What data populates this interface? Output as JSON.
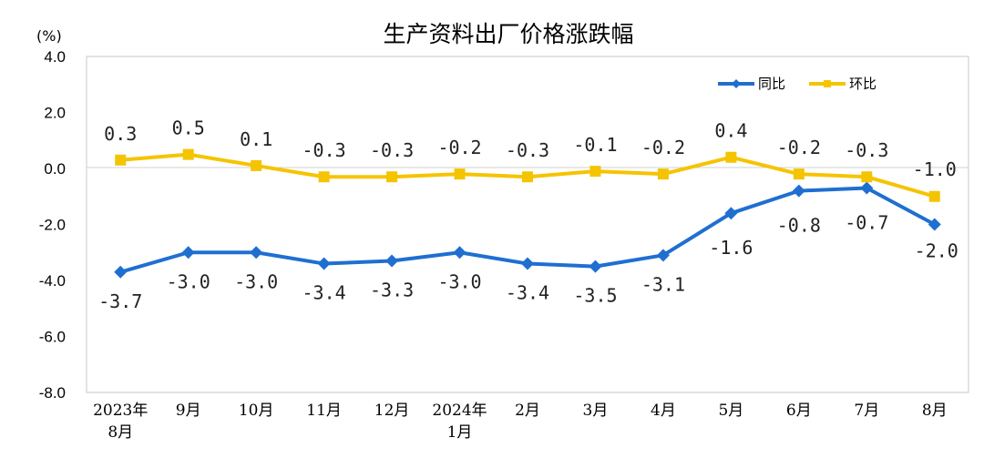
{
  "chart_data": {
    "type": "line",
    "title": "生产资料出厂价格涨跌幅",
    "unit_label": "(%)",
    "categories": [
      "2023年\n8月",
      "9月",
      "10月",
      "11月",
      "12月",
      "2024年\n1月",
      "2月",
      "3月",
      "4月",
      "5月",
      "6月",
      "7月",
      "8月"
    ],
    "series": [
      {
        "name": "同比",
        "color": "#1f6fd1",
        "marker": "diamond",
        "values": [
          -3.7,
          -3.0,
          -3.0,
          -3.4,
          -3.3,
          -3.0,
          -3.4,
          -3.5,
          -3.1,
          -1.6,
          -0.8,
          -0.7,
          -2.0
        ],
        "labels": [
          "-3.7",
          "-3.0",
          "-3.0",
          "-3.4",
          "-3.3",
          "-3.0",
          "-3.4",
          "-3.5",
          "-3.1",
          "-1.6",
          "-0.8",
          "-0.7",
          "-2.0"
        ]
      },
      {
        "name": "环比",
        "color": "#f5c400",
        "marker": "square",
        "values": [
          0.3,
          0.5,
          0.1,
          -0.3,
          -0.3,
          -0.2,
          -0.3,
          -0.1,
          -0.2,
          0.4,
          -0.2,
          -0.3,
          -1.0
        ],
        "labels": [
          "0.3",
          "0.5",
          "0.1",
          "-0.3",
          "-0.3",
          "-0.2",
          "-0.3",
          "-0.1",
          "-0.2",
          "0.4",
          "-0.2",
          "-0.3",
          "-1.0"
        ]
      }
    ],
    "ylim": [
      -8.0,
      4.0
    ],
    "yticks": [
      "4.0",
      "2.0",
      "0.0",
      "-2.0",
      "-4.0",
      "-6.0",
      "-8.0"
    ],
    "ytick_values": [
      4,
      2,
      0,
      -2,
      -4,
      -6,
      -8
    ],
    "grid": false,
    "legend": "top-right",
    "zero_line": true
  }
}
